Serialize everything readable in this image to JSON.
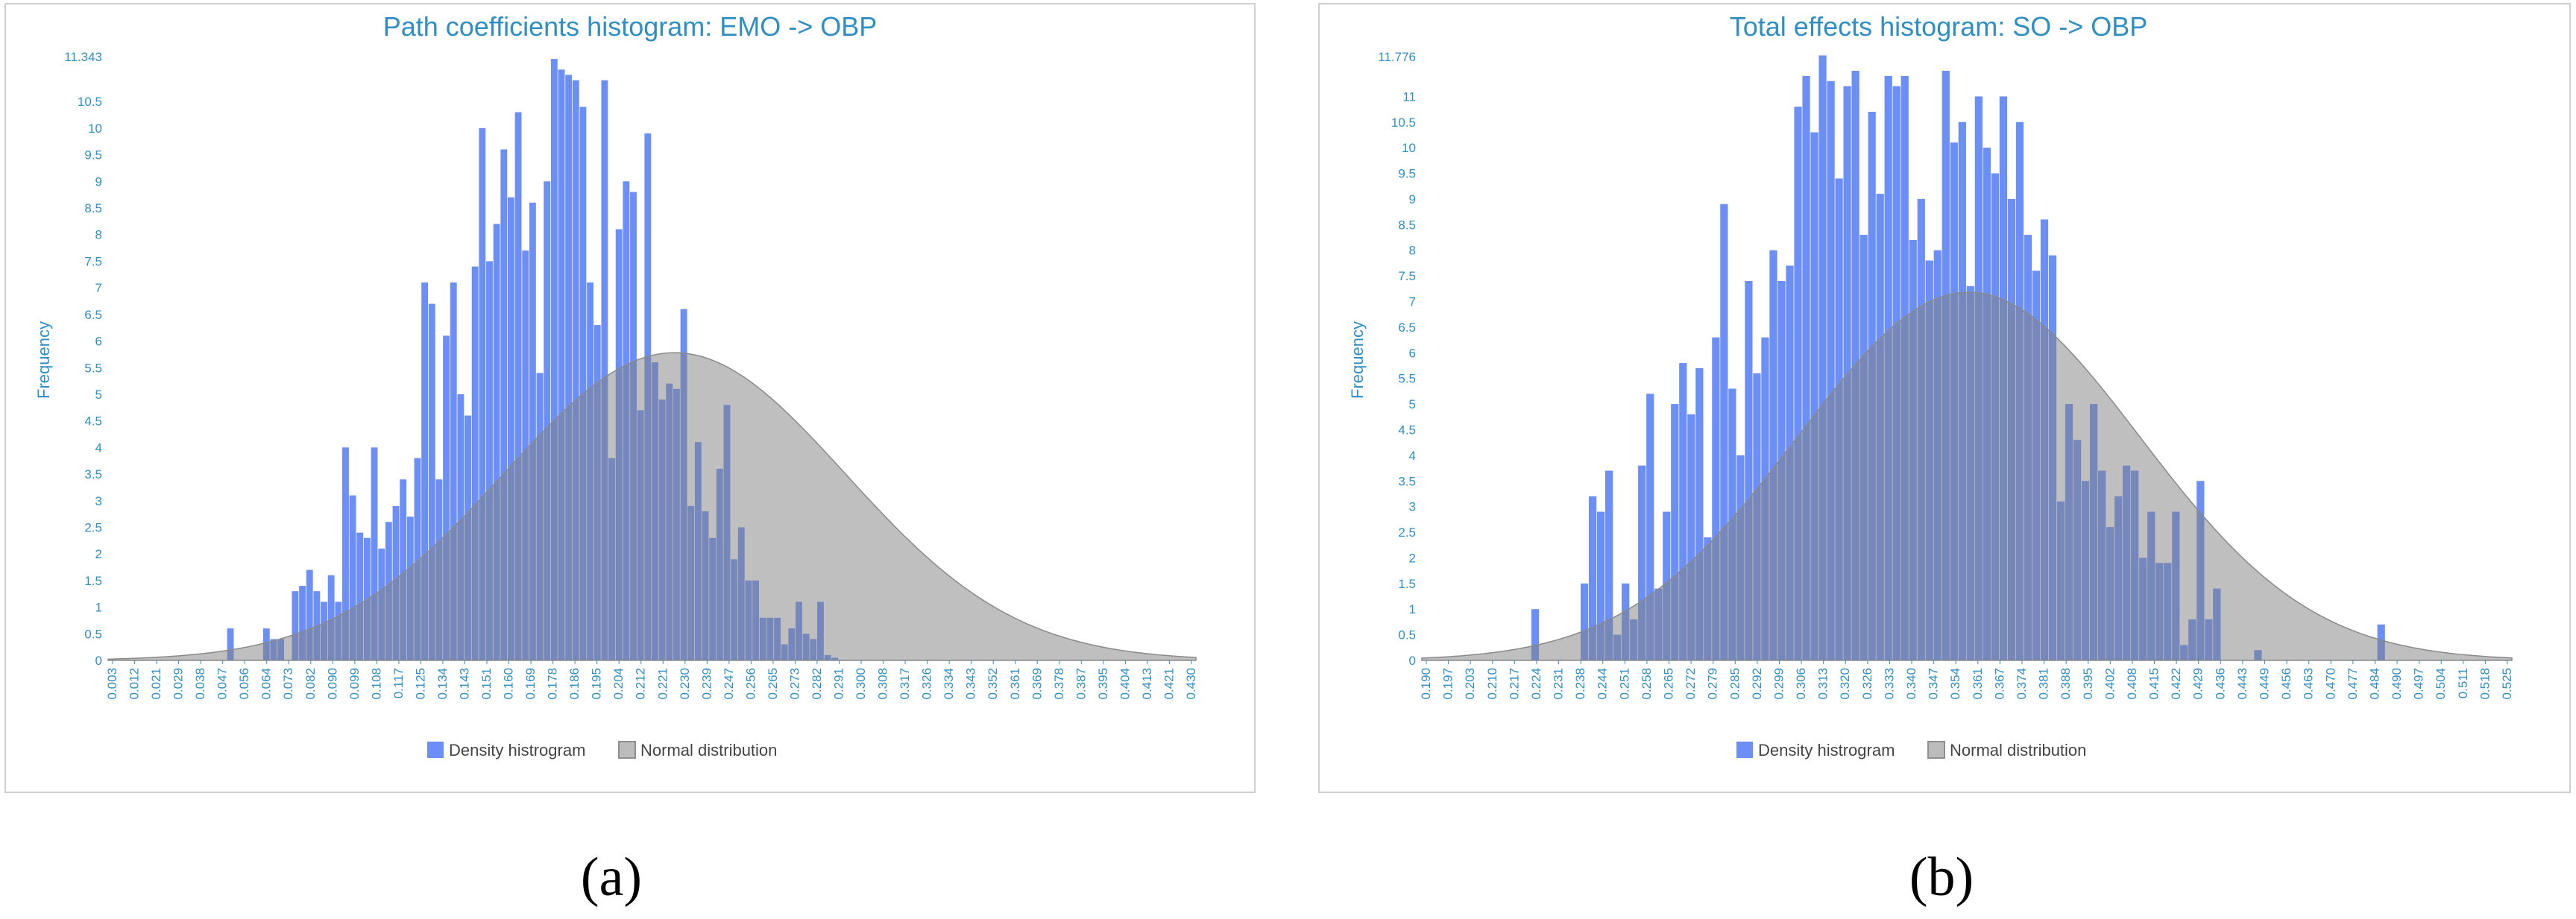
{
  "colors": {
    "bar": "#6b8ef7",
    "normal_fill": "#7f7f7f",
    "normal_line": "#8a8a8a",
    "axis_text": "#2f8fc4",
    "legend_text": "#444444"
  },
  "captions": [
    "(a)",
    "(b)"
  ],
  "chart_data": [
    {
      "type": "bar",
      "title": "Path coefficients histogram: EMO -> OBP",
      "ylabel": "Frequency",
      "xlabel": "",
      "legend": [
        "Density histrogram",
        "Normal distribution"
      ],
      "legend_position": "bottom-center",
      "ylim": [
        0,
        11.343
      ],
      "y_ticks": [
        "0",
        "0.5",
        "1",
        "1.5",
        "2",
        "2.5",
        "3",
        "3.5",
        "4",
        "4.5",
        "5",
        "5.5",
        "6",
        "6.5",
        "7",
        "7.5",
        "8",
        "8.5",
        "9",
        "9.5",
        "10",
        "10.5",
        "11.343"
      ],
      "x_min": -0.0013,
      "x_max": 0.4356,
      "x_tick_labels": [
        "0.003",
        "0.012",
        "0.021",
        "0.029",
        "0.038",
        "0.047",
        "0.056",
        "0.064",
        "0.073",
        "0.082",
        "0.090",
        "0.099",
        "0.108",
        "0.117",
        "0.125",
        "0.134",
        "0.143",
        "0.151",
        "0.160",
        "0.169",
        "0.178",
        "0.186",
        "0.195",
        "0.204",
        "0.212",
        "0.221",
        "0.230",
        "0.239",
        "0.247",
        "0.256",
        "0.265",
        "0.273",
        "0.282",
        "0.291",
        "0.300",
        "0.308",
        "0.317",
        "0.326",
        "0.334",
        "0.343",
        "0.352",
        "0.361",
        "0.369",
        "0.378",
        "0.387",
        "0.395",
        "0.404",
        "0.413",
        "0.421",
        "0.430"
      ],
      "bin_start": 0.0465,
      "bin_width": 0.00289,
      "values": [
        0.6,
        0,
        0,
        0,
        0,
        0.6,
        0.4,
        0.4,
        0,
        1.3,
        1.4,
        1.7,
        1.3,
        1.1,
        1.6,
        1.1,
        4.0,
        3.1,
        2.4,
        2.3,
        4.0,
        2.1,
        2.6,
        2.9,
        3.4,
        2.7,
        3.8,
        7.1,
        6.7,
        3.4,
        6.1,
        7.1,
        5.0,
        4.6,
        7.4,
        10.0,
        7.5,
        8.2,
        9.6,
        8.7,
        10.3,
        7.7,
        8.6,
        5.4,
        9.0,
        11.3,
        11.1,
        11.0,
        10.9,
        10.4,
        7.1,
        6.3,
        10.9,
        3.8,
        8.1,
        9.0,
        8.8,
        4.7,
        9.9,
        5.6,
        4.9,
        5.2,
        5.1,
        6.6,
        2.9,
        4.1,
        2.8,
        2.3,
        3.6,
        4.8,
        1.9,
        2.5,
        1.5,
        1.5,
        0.8,
        0.8,
        0.8,
        0.3,
        0.6,
        1.1,
        0.5,
        0.4,
        1.1,
        0.1,
        0.05
      ],
      "normal": {
        "mean": 0.2262,
        "sd": 0.0686,
        "peak": 5.78
      }
    },
    {
      "type": "bar",
      "title": "Total effects histogram: SO -> OBP",
      "ylabel": "Frequency",
      "xlabel": "",
      "legend": [
        "Density histrogram",
        "Normal distribution"
      ],
      "legend_position": "bottom-center",
      "ylim": [
        0,
        11.776
      ],
      "y_ticks": [
        "0",
        "0.5",
        "1",
        "1.5",
        "2",
        "2.5",
        "3",
        "3.5",
        "4",
        "4.5",
        "5",
        "5.5",
        "6",
        "6.5",
        "7",
        "7.5",
        "8",
        "8.5",
        "9",
        "9.5",
        "10",
        "10.5",
        "11",
        "11.776"
      ],
      "x_min": 0.1872,
      "x_max": 0.5296,
      "x_tick_labels": [
        "0.190",
        "0.197",
        "0.203",
        "0.210",
        "0.217",
        "0.224",
        "0.231",
        "0.238",
        "0.244",
        "0.251",
        "0.258",
        "0.265",
        "0.272",
        "0.279",
        "0.285",
        "0.292",
        "0.299",
        "0.306",
        "0.313",
        "0.320",
        "0.326",
        "0.333",
        "0.340",
        "0.347",
        "0.354",
        "0.361",
        "0.367",
        "0.374",
        "0.381",
        "0.388",
        "0.395",
        "0.402",
        "0.408",
        "0.415",
        "0.422",
        "0.429",
        "0.436",
        "0.443",
        "0.449",
        "0.456",
        "0.463",
        "0.470",
        "0.477",
        "0.484",
        "0.490",
        "0.497",
        "0.504",
        "0.511",
        "0.518",
        "0.525"
      ],
      "bin_start": 0.2216,
      "bin_width": 0.00258,
      "values": [
        1.0,
        0,
        0,
        0,
        0,
        0,
        1.5,
        3.2,
        2.9,
        3.7,
        0.5,
        1.5,
        0.8,
        3.8,
        5.2,
        1.4,
        2.9,
        5.0,
        5.8,
        4.8,
        5.7,
        2.4,
        6.3,
        8.9,
        5.3,
        4.0,
        7.4,
        5.6,
        6.3,
        8.0,
        7.4,
        7.7,
        10.8,
        11.4,
        10.3,
        11.8,
        11.3,
        9.4,
        11.2,
        11.5,
        8.3,
        10.7,
        9.1,
        11.4,
        11.2,
        11.4,
        8.2,
        9.0,
        7.8,
        8.0,
        11.5,
        10.1,
        10.5,
        7.3,
        11.0,
        10.0,
        9.5,
        11.0,
        9.0,
        10.5,
        8.3,
        7.6,
        8.6,
        7.9,
        3.1,
        5.0,
        4.3,
        3.5,
        5.0,
        3.7,
        2.6,
        3.2,
        3.8,
        3.7,
        2.0,
        2.9,
        1.9,
        1.9,
        2.9,
        0.3,
        0.8,
        3.5,
        0.8,
        1.4,
        0,
        0,
        0,
        0,
        0.2,
        0,
        0,
        0,
        0,
        0,
        0,
        0,
        0,
        0,
        0,
        0,
        0,
        0,
        0,
        0.7
      ],
      "normal": {
        "mean": 0.359,
        "sd": 0.0538,
        "peak": 7.18
      }
    }
  ]
}
